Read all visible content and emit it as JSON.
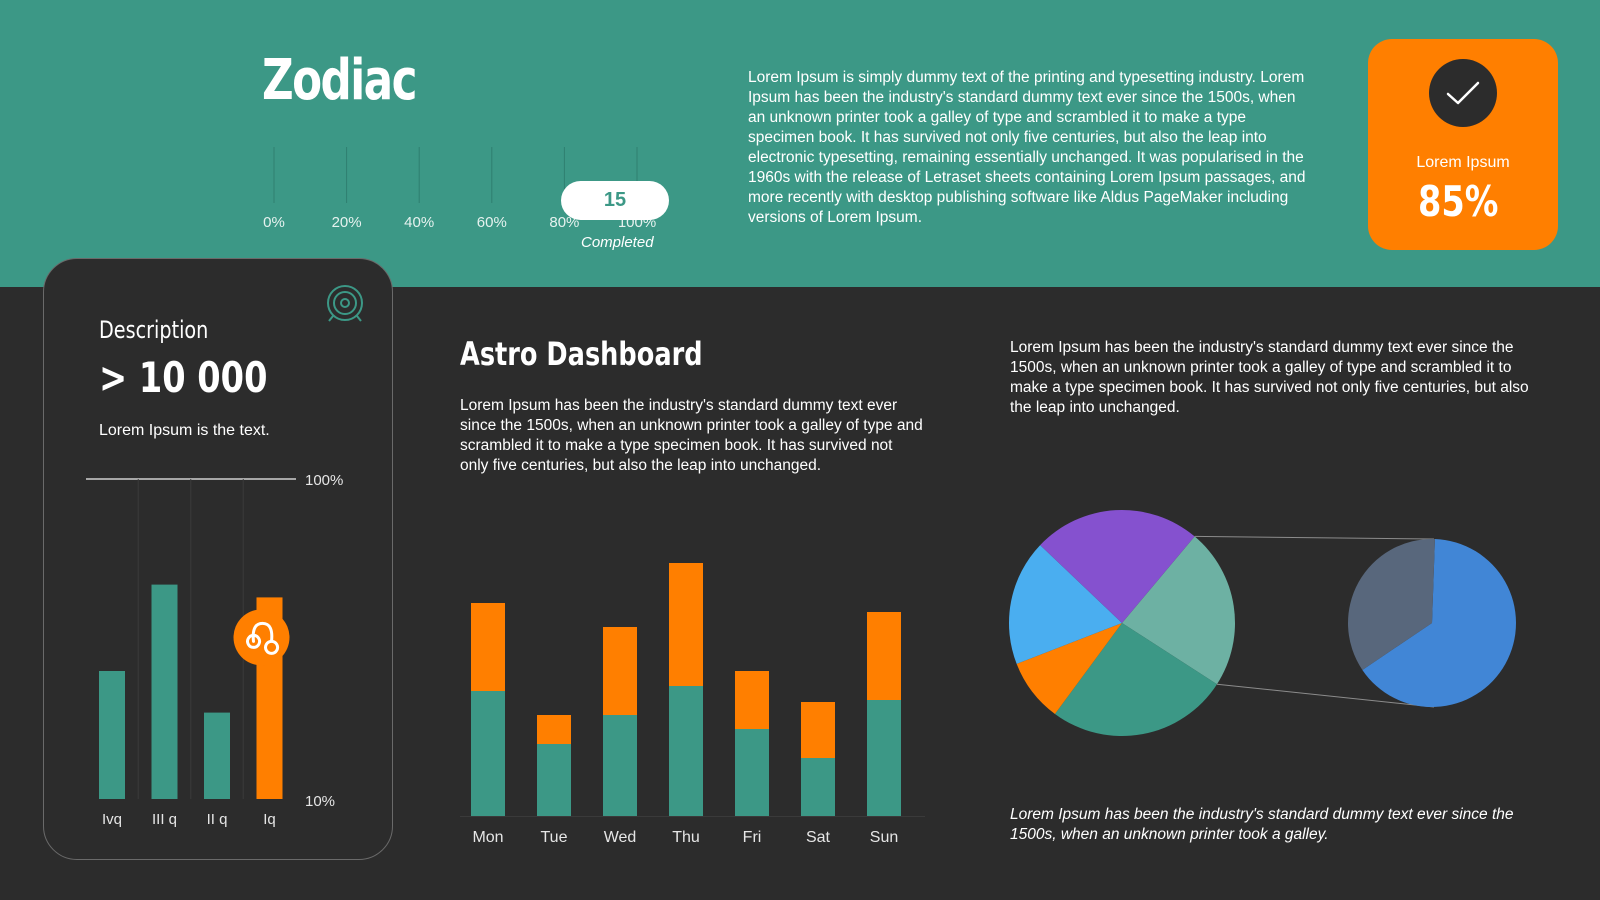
{
  "header": {
    "title": "Zodiac",
    "paragraph": "Lorem Ipsum is simply dummy text of the printing and typesetting industry. Lorem Ipsum has been the industry's standard dummy text ever since the 1500s, when an unknown printer took a galley of type and scrambled it to make a type specimen book. It has survived not only five centuries, but also the leap into electronic typesetting, remaining essentially unchanged. It was popularised in the 1960s with the release of Letraset sheets containing Lorem Ipsum passages, and more recently with desktop publishing software like Aldus PageMaker including versions of Lorem Ipsum."
  },
  "progress": {
    "value_label": "15",
    "caption": "Completed",
    "ticks": [
      "0%",
      "20%",
      "40%",
      "60%",
      "80%",
      "100%"
    ],
    "value_percent": 95
  },
  "badge": {
    "label": "Lorem Ipsum",
    "value": "85%",
    "icon": "check-icon",
    "color": "#ff7f00"
  },
  "card": {
    "heading": "Description",
    "value": "> 10 000",
    "text": "Lorem Ipsum is the text.",
    "icon": "target-icon",
    "zodiac_icon": "leo-icon"
  },
  "dashboard": {
    "title": "Astro Dashboard",
    "paragraph": "Lorem Ipsum has been the industry's standard dummy text ever since the 1500s, when an unknown printer took a galley of type and scrambled it to make a type specimen book. It has survived not only five centuries, but also the leap into unchanged."
  },
  "right": {
    "paragraph": "Lorem Ipsum has been the industry's standard dummy text ever since the 1500s, when an unknown printer took a galley of type and scrambled it to make a type specimen book. It has survived not only five centuries, but also the leap into unchanged.",
    "caption": "Lorem Ipsum has been the industry's standard dummy text ever since the 1500s, when an unknown printer took a galley."
  },
  "colors": {
    "teal": "#3c9886",
    "orange": "#ff7f00",
    "dark": "#2c2c2c"
  },
  "chart_data": [
    {
      "type": "bar",
      "categories": [
        "Ivq",
        "III q",
        "II q",
        "Iq"
      ],
      "values": [
        40,
        67,
        27,
        63
      ],
      "ylim": [
        0,
        100
      ],
      "tick_labels": [
        "100%",
        "10%"
      ],
      "colors": [
        "#3c9886",
        "#3c9886",
        "#3c9886",
        "#ff7f00"
      ]
    },
    {
      "type": "bar",
      "stacked": true,
      "categories": [
        "Mon",
        "Tue",
        "Wed",
        "Thu",
        "Fri",
        "Sat",
        "Sun"
      ],
      "series": [
        {
          "values": [
            125,
            72,
            101,
            130,
            87,
            58,
            116
          ],
          "color": "#3c9886"
        },
        {
          "values": [
            88,
            29,
            88,
            123,
            58,
            56,
            88
          ],
          "color": "#ff7f00"
        }
      ]
    },
    {
      "type": "pie",
      "slices": [
        {
          "value": 23,
          "color": "#6db1a3"
        },
        {
          "value": 26,
          "color": "#3c9886"
        },
        {
          "value": 9,
          "color": "#ff7f00"
        },
        {
          "value": 18,
          "color": "#4aaef0"
        },
        {
          "value": 24,
          "color": "#8551cf"
        }
      ],
      "exploded_slice_index": 0
    },
    {
      "type": "pie",
      "slices": [
        {
          "value": 65,
          "color": "#4186d6"
        },
        {
          "value": 35,
          "color": "#58677c"
        }
      ]
    }
  ]
}
